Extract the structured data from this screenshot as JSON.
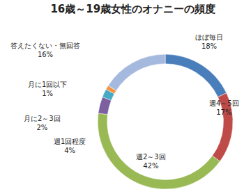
{
  "chart_data": {
    "type": "pie",
    "title": "16歳～19歳女性のオナニーの頻度",
    "categories": [
      "ほぼ毎日",
      "週4～5回",
      "週2～3回",
      "週1回程度",
      "月に2～3回",
      "月に1回以下",
      "答えたくない・無回答"
    ],
    "values": [
      18,
      17,
      42,
      4,
      2,
      1,
      16
    ],
    "value_labels": [
      "18%",
      "17%",
      "42%",
      "4%",
      "2%",
      "1%",
      "16%"
    ],
    "colors": [
      "#4a7ebb",
      "#be4b48",
      "#98b954",
      "#7d60a0",
      "#46aac5",
      "#f69240",
      "#a5b9df"
    ],
    "data_labels": true
  }
}
